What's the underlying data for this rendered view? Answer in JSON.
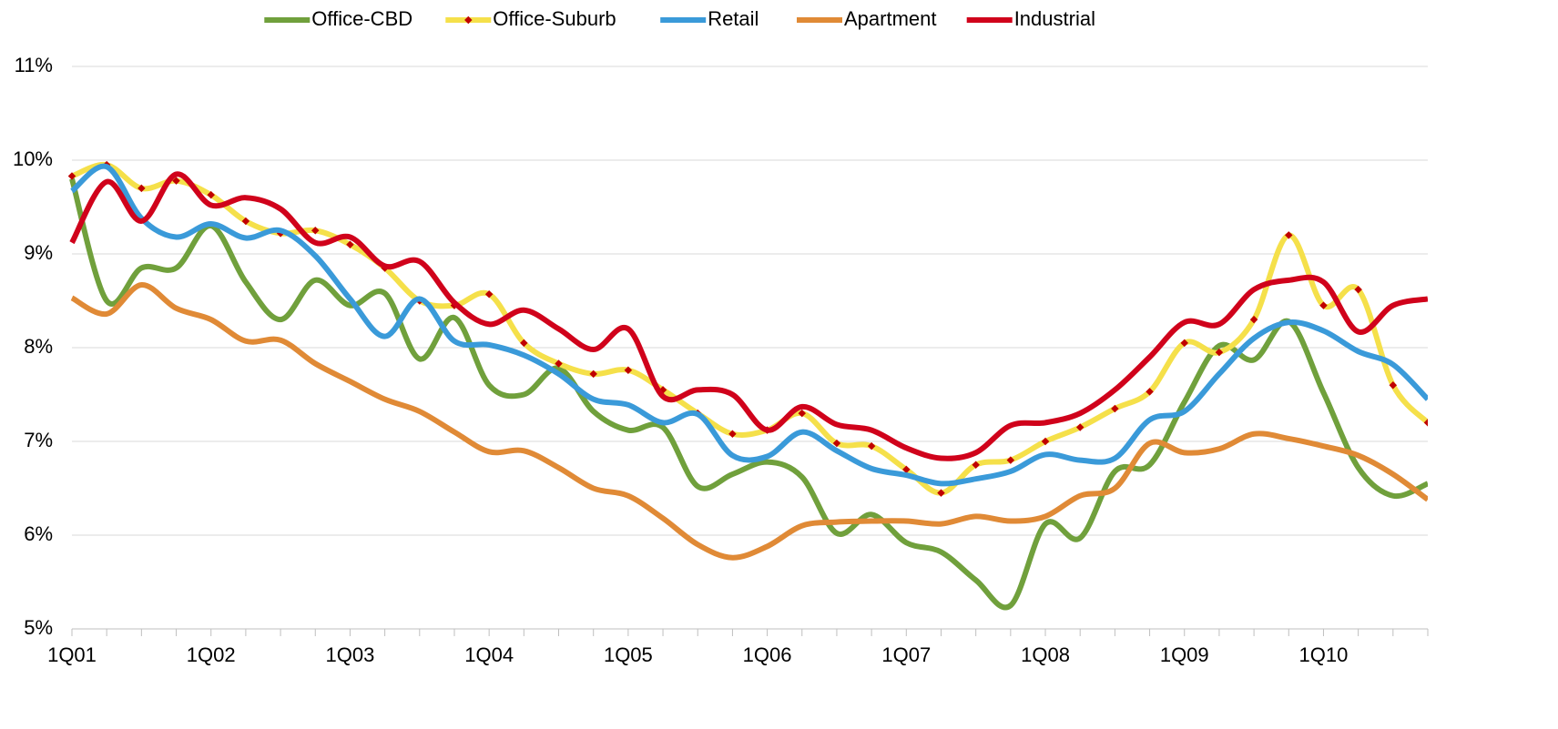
{
  "chart_data": {
    "type": "line",
    "categories": [
      "1Q01",
      null,
      null,
      null,
      "1Q02",
      null,
      null,
      null,
      "1Q03",
      null,
      null,
      null,
      "1Q04",
      null,
      null,
      null,
      "1Q05",
      null,
      null,
      null,
      "1Q06",
      null,
      null,
      null,
      "1Q07",
      null,
      null,
      null,
      "1Q08",
      null,
      null,
      null,
      "1Q09",
      null,
      null,
      null,
      "1Q10",
      null,
      null,
      null
    ],
    "series": [
      {
        "name": "Office-CBD",
        "color": "#70a03c",
        "values": [
          9.8,
          8.5,
          8.85,
          8.85,
          9.3,
          8.7,
          8.3,
          8.72,
          8.45,
          8.58,
          7.88,
          8.32,
          7.6,
          7.5,
          7.78,
          7.32,
          7.12,
          7.15,
          6.52,
          6.65,
          6.78,
          6.62,
          6.02,
          6.22,
          5.92,
          5.82,
          5.52,
          5.25,
          6.12,
          5.97,
          6.68,
          6.75,
          7.42,
          8.02,
          7.87,
          8.28,
          7.52,
          6.72,
          6.42,
          6.55
        ]
      },
      {
        "name": "Office-Suburb",
        "color": "#f5e04a",
        "marker_color": "#c00000",
        "values": [
          9.83,
          9.95,
          9.7,
          9.78,
          9.63,
          9.35,
          9.22,
          9.25,
          9.1,
          8.85,
          8.5,
          8.45,
          8.57,
          8.05,
          7.83,
          7.72,
          7.76,
          7.55,
          7.3,
          7.08,
          7.12,
          7.3,
          6.98,
          6.95,
          6.7,
          6.45,
          6.75,
          6.8,
          7.0,
          7.15,
          7.35,
          7.53,
          8.05,
          7.95,
          8.3,
          9.2,
          8.45,
          8.62,
          7.6,
          7.2
        ]
      },
      {
        "name": "Retail",
        "color": "#3a9ad9",
        "values": [
          9.67,
          9.93,
          9.38,
          9.18,
          9.32,
          9.17,
          9.25,
          8.98,
          8.52,
          8.12,
          8.52,
          8.07,
          8.03,
          7.92,
          7.72,
          7.45,
          7.39,
          7.2,
          7.29,
          6.85,
          6.84,
          7.1,
          6.9,
          6.71,
          6.64,
          6.55,
          6.6,
          6.68,
          6.86,
          6.8,
          6.82,
          7.23,
          7.32,
          7.72,
          8.1,
          8.27,
          8.18,
          7.96,
          7.82,
          7.45
        ]
      },
      {
        "name": "Apartment",
        "color": "#e08a36",
        "values": [
          8.53,
          8.36,
          8.67,
          8.42,
          8.3,
          8.07,
          8.08,
          7.83,
          7.64,
          7.45,
          7.32,
          7.1,
          6.89,
          6.9,
          6.72,
          6.5,
          6.42,
          6.18,
          5.9,
          5.76,
          5.88,
          6.1,
          6.14,
          6.15,
          6.15,
          6.12,
          6.2,
          6.15,
          6.2,
          6.42,
          6.5,
          6.98,
          6.88,
          6.92,
          7.08,
          7.03,
          6.95,
          6.85,
          6.65,
          6.38
        ]
      },
      {
        "name": "Industrial",
        "color": "#d0021b",
        "values": [
          9.12,
          9.77,
          9.35,
          9.85,
          9.52,
          9.6,
          9.48,
          9.12,
          9.18,
          8.87,
          8.92,
          8.48,
          8.25,
          8.4,
          8.2,
          7.98,
          8.2,
          7.48,
          7.55,
          7.5,
          7.12,
          7.37,
          7.18,
          7.12,
          6.93,
          6.82,
          6.88,
          7.17,
          7.2,
          7.3,
          7.55,
          7.9,
          8.27,
          8.25,
          8.62,
          8.72,
          8.7,
          8.17,
          8.45,
          8.52
        ]
      }
    ],
    "ylim": [
      5,
      11
    ],
    "yticks": [
      {
        "value": 5,
        "label": "5%"
      },
      {
        "value": 6,
        "label": "6%"
      },
      {
        "value": 7,
        "label": "7%"
      },
      {
        "value": 8,
        "label": "8%"
      },
      {
        "value": 9,
        "label": "9%"
      },
      {
        "value": 10,
        "label": "10%"
      },
      {
        "value": 11,
        "label": "11%"
      }
    ],
    "grid": true,
    "smooth": true,
    "legend": "top"
  }
}
